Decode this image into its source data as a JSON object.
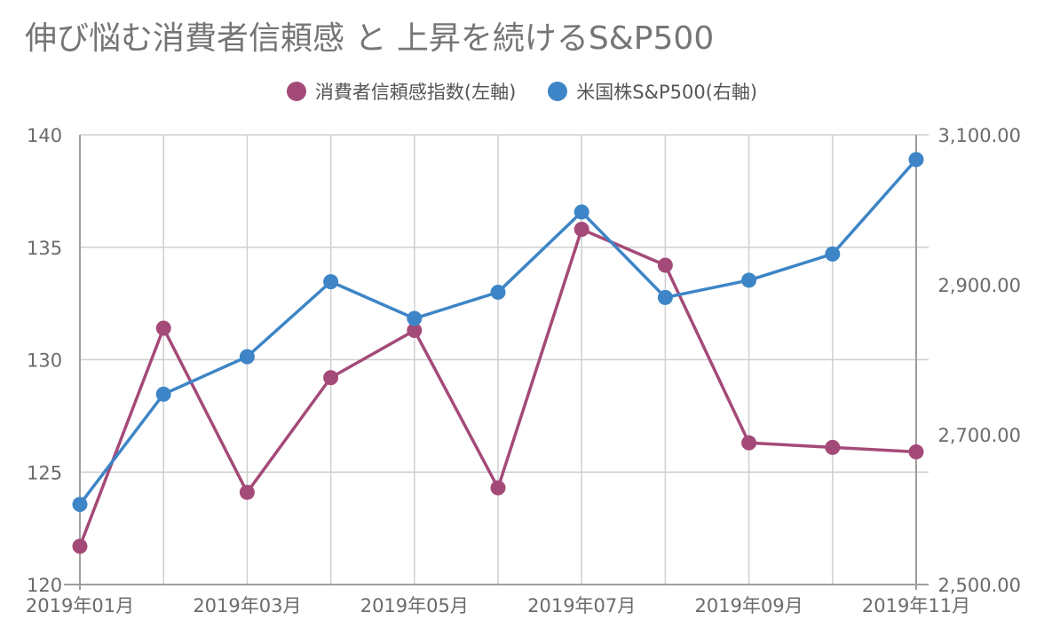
{
  "chart_data": {
    "type": "line",
    "title": "伸び悩む消費者信頼感 と 上昇を続けるS&P500",
    "categories": [
      "2019年01月",
      "2019年02月",
      "2019年03月",
      "2019年04月",
      "2019年05月",
      "2019年06月",
      "2019年07月",
      "2019年08月",
      "2019年09月",
      "2019年10月",
      "2019年11月"
    ],
    "x_tick_labels": [
      "2019年01月",
      "2019年03月",
      "2019年05月",
      "2019年07月",
      "2019年09月",
      "2019年11月"
    ],
    "y_left": {
      "ylim": [
        120,
        140
      ],
      "ticks": [
        "120",
        "125",
        "130",
        "135",
        "140"
      ]
    },
    "y_right": {
      "ylim": [
        2500,
        3100
      ],
      "ticks": [
        "2,500.00",
        "2,700.00",
        "2,900.00",
        "3,100.00"
      ]
    },
    "grid": true,
    "legend_position": "top",
    "series": [
      {
        "name": "消費者信頼感指数(左軸)",
        "axis": "left",
        "color": "#a44a78",
        "values": [
          121.7,
          131.4,
          124.1,
          129.2,
          131.3,
          124.3,
          135.8,
          134.2,
          126.3,
          126.1,
          125.9
        ]
      },
      {
        "name": "米国株S&P500(右軸)",
        "axis": "right",
        "color": "#3d85c6",
        "values": [
          2607,
          2754,
          2804,
          2904,
          2855,
          2890,
          2997,
          2883,
          2906,
          2941,
          3067
        ]
      }
    ]
  }
}
